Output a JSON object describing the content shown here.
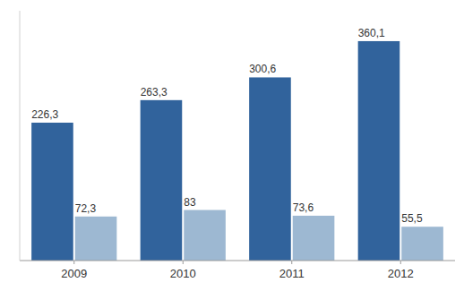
{
  "chart_data": {
    "type": "bar",
    "categories": [
      "2009",
      "2010",
      "2011",
      "2012"
    ],
    "series": [
      {
        "color": "#31639C",
        "values": [
          226.3,
          263.3,
          300.6,
          360.1
        ],
        "value_labels": [
          "226,3",
          "263,3",
          "300,6",
          "360,1"
        ]
      },
      {
        "color": "#9DB8D2",
        "values": [
          72.3,
          83.0,
          73.6,
          55.5
        ],
        "value_labels": [
          "72,3",
          "83",
          "73,6",
          "55,5"
        ]
      }
    ],
    "ylim": [
      0,
      410
    ],
    "data_labels": true,
    "tick_labels": "x",
    "grid": false
  }
}
